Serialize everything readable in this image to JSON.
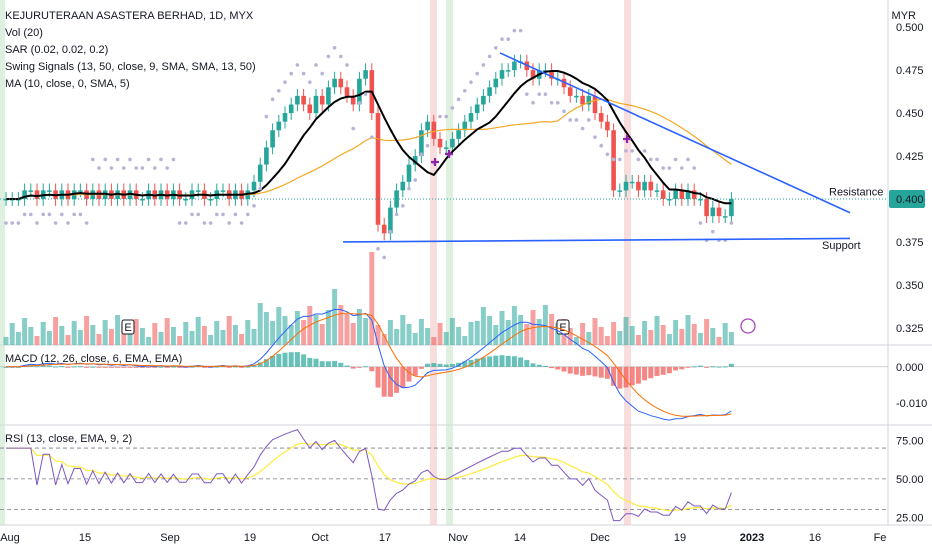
{
  "header": {
    "symbol": "KEJURUTERAAN ASASTERA BERHAD, 1D, MYX",
    "currency": "MYR",
    "indicators": [
      "Vol (20)",
      "SAR (0.02, 0.02, 0.2)",
      "Swing Signals (13, 50, close, 9, SMA, SMA, 13, 50)",
      "MA (10, close, 0, SMA, 5)"
    ]
  },
  "panes": {
    "macd_label": "MACD (12, 26, close, 6, EMA, EMA)",
    "rsi_label": "RSI (13, close, EMA, 9, 2)"
  },
  "annotations": {
    "resistance": "Resistance",
    "support": "Support",
    "price_tag": "0.400",
    "earnings_marker": "E"
  },
  "colors": {
    "up": "#26a69a",
    "down": "#ef5350",
    "ma_black": "#000000",
    "sma_orange": "#f5a623",
    "trendline": "#2962ff",
    "sar": "#b8b2d6",
    "macd": "#2962ff",
    "signal": "#ff6d00",
    "rsi": "#7e57c2",
    "rsi_ma": "#ffeb3b"
  },
  "chart_data": [
    {
      "type": "candlestick",
      "title": "KEJURUTERAAN ASASTERA BERHAD, 1D, MYX",
      "ylabel": "MYR",
      "ylim": [
        0.315,
        0.51
      ],
      "y_ticks": [
        "0.500",
        "0.475",
        "0.450",
        "0.425",
        "0.400",
        "0.375",
        "0.350",
        "0.325"
      ],
      "x_ticks": [
        "Aug",
        "15",
        "Sep",
        "19",
        "Oct",
        "17",
        "Nov",
        "14",
        "Dec",
        "19",
        "2023",
        "16",
        "Fe"
      ],
      "last_price": 0.4,
      "close": [
        0.4,
        0.4,
        0.4,
        0.405,
        0.405,
        0.4,
        0.405,
        0.405,
        0.4,
        0.405,
        0.4,
        0.405,
        0.405,
        0.4,
        0.405,
        0.4,
        0.405,
        0.4,
        0.405,
        0.4,
        0.405,
        0.4,
        0.4,
        0.405,
        0.4,
        0.405,
        0.4,
        0.405,
        0.4,
        0.4,
        0.405,
        0.405,
        0.4,
        0.4,
        0.405,
        0.405,
        0.4,
        0.405,
        0.4,
        0.405,
        0.41,
        0.42,
        0.43,
        0.44,
        0.445,
        0.45,
        0.455,
        0.46,
        0.455,
        0.45,
        0.46,
        0.455,
        0.465,
        0.47,
        0.465,
        0.46,
        0.455,
        0.47,
        0.475,
        0.45,
        0.385,
        0.38,
        0.395,
        0.405,
        0.41,
        0.42,
        0.425,
        0.44,
        0.445,
        0.435,
        0.43,
        0.43,
        0.435,
        0.44,
        0.445,
        0.45,
        0.455,
        0.46,
        0.465,
        0.47,
        0.475,
        0.475,
        0.48,
        0.48,
        0.475,
        0.47,
        0.475,
        0.475,
        0.47,
        0.47,
        0.465,
        0.46,
        0.46,
        0.455,
        0.46,
        0.45,
        0.445,
        0.44,
        0.405,
        0.405,
        0.41,
        0.41,
        0.405,
        0.41,
        0.405,
        0.405,
        0.4,
        0.4,
        0.405,
        0.4,
        0.405,
        0.4,
        0.4,
        0.39,
        0.395,
        0.39,
        0.39,
        0.4
      ],
      "series": [
        {
          "name": "MA (10)",
          "type": "line"
        },
        {
          "name": "SMA 50",
          "type": "line"
        },
        {
          "name": "SAR",
          "type": "scatter"
        },
        {
          "name": "Volume",
          "type": "bar"
        }
      ],
      "trendlines": [
        {
          "label": "Resistance",
          "from": [
            "2022-11-08",
            0.485
          ],
          "to": [
            "2023-01-18",
            0.392
          ]
        },
        {
          "label": "Support",
          "from": [
            "2022-10-10",
            0.375
          ],
          "to": [
            "2023-01-17",
            0.377
          ]
        }
      ]
    },
    {
      "type": "line",
      "title": "MACD (12, 26, close, 6, EMA, EMA)",
      "ylim": [
        -0.016,
        0.006
      ],
      "y_ticks": [
        "0.000",
        "-0.010"
      ]
    },
    {
      "type": "line",
      "title": "RSI (13, close, EMA, 9, 2)",
      "ylim": [
        20,
        85
      ],
      "y_ticks": [
        "75.00",
        "50.00",
        "25.00"
      ],
      "bands": [
        70,
        50,
        30
      ]
    }
  ]
}
